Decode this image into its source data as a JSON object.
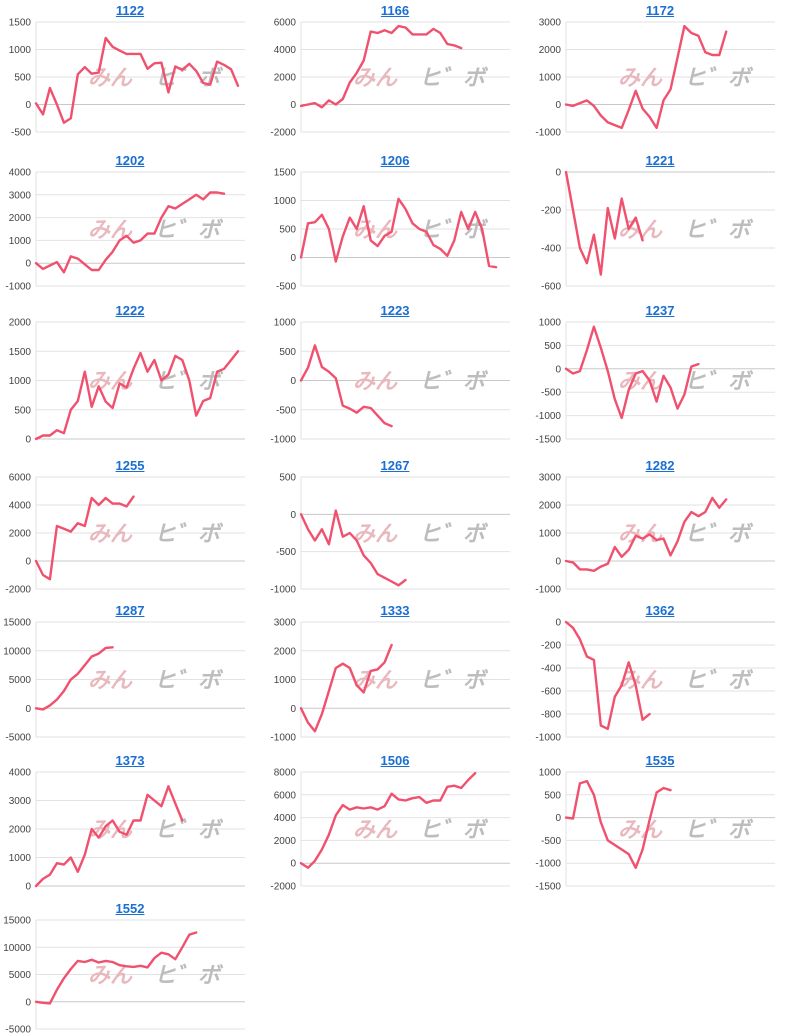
{
  "colors": {
    "line": "#f0516e",
    "grid": "#e2e2e2",
    "axis": "#c8c8c8",
    "title": "#1a6fd1",
    "tick": "#444444"
  },
  "watermark": {
    "part1": "みん",
    "part2": "ヒ゛ボ"
  },
  "chart_data": [
    {
      "type": "line",
      "title": "1122",
      "ylim": [
        -500,
        1500
      ],
      "yticks": [
        -500,
        0,
        500,
        1000,
        1500
      ],
      "x": [
        0,
        1,
        2,
        3,
        4,
        5,
        6,
        7,
        8,
        9,
        10,
        11,
        12,
        13,
        14,
        15,
        16,
        17,
        18,
        19,
        20,
        21,
        22,
        23,
        24,
        25,
        26,
        27,
        28,
        29,
        30
      ],
      "values": [
        20,
        -180,
        300,
        0,
        -330,
        -250,
        550,
        680,
        560,
        580,
        1210,
        1050,
        980,
        920,
        920,
        920,
        650,
        750,
        760,
        220,
        690,
        630,
        740,
        610,
        390,
        360,
        780,
        720,
        640,
        340,
        null
      ]
    },
    {
      "type": "line",
      "title": "1166",
      "ylim": [
        -2000,
        6000
      ],
      "yticks": [
        -2000,
        0,
        2000,
        4000,
        6000
      ],
      "values": [
        -100,
        0,
        100,
        -200,
        300,
        0,
        400,
        1600,
        2300,
        3200,
        5300,
        5200,
        5400,
        5200,
        5700,
        5600,
        5100,
        5100,
        5100,
        5500,
        5200,
        4400,
        4300,
        4100,
        null,
        null,
        null,
        null,
        null,
        null,
        null
      ]
    },
    {
      "type": "line",
      "title": "1172",
      "ylim": [
        -1000,
        3000
      ],
      "yticks": [
        -1000,
        0,
        1000,
        2000,
        3000
      ],
      "values": [
        0,
        -50,
        50,
        150,
        -50,
        -400,
        -650,
        -750,
        -850,
        -200,
        500,
        -150,
        -450,
        -850,
        150,
        550,
        1700,
        2850,
        2600,
        2500,
        1900,
        1800,
        1800,
        2650,
        null,
        null,
        null,
        null,
        null,
        null,
        null
      ]
    },
    {
      "type": "line",
      "title": "1202",
      "ylim": [
        -1000,
        4000
      ],
      "yticks": [
        -1000,
        0,
        1000,
        2000,
        3000,
        4000
      ],
      "values": [
        0,
        -250,
        -100,
        50,
        -400,
        300,
        200,
        -50,
        -300,
        -300,
        150,
        500,
        1000,
        1200,
        900,
        1000,
        1300,
        1300,
        2000,
        2500,
        2400,
        2600,
        2800,
        3000,
        2800,
        3100,
        3100,
        3050,
        null,
        null,
        null
      ]
    },
    {
      "type": "line",
      "title": "1206",
      "ylim": [
        -500,
        1500
      ],
      "yticks": [
        -500,
        0,
        500,
        1000,
        1500
      ],
      "values": [
        0,
        600,
        620,
        750,
        500,
        -70,
        370,
        700,
        500,
        900,
        300,
        200,
        380,
        450,
        1030,
        850,
        600,
        500,
        450,
        220,
        150,
        30,
        300,
        800,
        500,
        800,
        500,
        -150,
        -170,
        null,
        null
      ]
    },
    {
      "type": "line",
      "title": "1221",
      "ylim": [
        -600,
        0
      ],
      "yticks": [
        -600,
        -400,
        -200,
        0
      ],
      "values": [
        0,
        -200,
        -400,
        -480,
        -330,
        -540,
        -190,
        -350,
        -140,
        -300,
        -240,
        -360,
        null,
        null,
        null,
        null,
        null,
        null,
        null,
        null,
        null,
        null,
        null,
        null,
        null,
        null,
        null,
        null,
        null,
        null,
        null
      ]
    },
    {
      "type": "line",
      "title": "1222",
      "ylim": [
        0,
        2000
      ],
      "yticks": [
        0,
        500,
        1000,
        1500,
        2000
      ],
      "values": [
        0,
        60,
        60,
        150,
        100,
        500,
        650,
        1150,
        550,
        900,
        640,
        530,
        950,
        880,
        1200,
        1470,
        1150,
        1350,
        1000,
        1100,
        1420,
        1350,
        1000,
        400,
        650,
        700,
        1150,
        1200,
        1350,
        1500,
        null
      ]
    },
    {
      "type": "line",
      "title": "1223",
      "ylim": [
        -1000,
        1000
      ],
      "yticks": [
        -1000,
        -500,
        0,
        500,
        1000
      ],
      "values": [
        0,
        220,
        600,
        230,
        150,
        40,
        -430,
        -480,
        -550,
        -450,
        -470,
        -600,
        -730,
        -780,
        null,
        null,
        null,
        null,
        null,
        null,
        null,
        null,
        null,
        null,
        null,
        null,
        null,
        null,
        null,
        null,
        null
      ]
    },
    {
      "type": "line",
      "title": "1237",
      "ylim": [
        -1500,
        1000
      ],
      "yticks": [
        -1500,
        -1000,
        -500,
        0,
        500,
        1000
      ],
      "values": [
        0,
        -100,
        -50,
        400,
        900,
        450,
        -50,
        -650,
        -1050,
        -450,
        -100,
        -50,
        -250,
        -700,
        -150,
        -400,
        -850,
        -550,
        50,
        100,
        null,
        null,
        null,
        null,
        null,
        null,
        null,
        null,
        null,
        null,
        null
      ]
    },
    {
      "type": "line",
      "title": "1255",
      "ylim": [
        -2000,
        6000
      ],
      "yticks": [
        -2000,
        0,
        2000,
        4000,
        6000
      ],
      "values": [
        0,
        -1000,
        -1300,
        2500,
        2300,
        2100,
        2700,
        2500,
        4500,
        4000,
        4500,
        4100,
        4100,
        3900,
        4600,
        null,
        null,
        null,
        null,
        null,
        null,
        null,
        null,
        null,
        null,
        null,
        null,
        null,
        null,
        null,
        null
      ]
    },
    {
      "type": "line",
      "title": "1267",
      "ylim": [
        -1000,
        500
      ],
      "yticks": [
        -1000,
        -500,
        0,
        500
      ],
      "values": [
        0,
        -200,
        -350,
        -200,
        -400,
        50,
        -300,
        -250,
        -350,
        -550,
        -650,
        -800,
        -850,
        -900,
        -950,
        -880,
        null,
        null,
        null,
        null,
        null,
        null,
        null,
        null,
        null,
        null,
        null,
        null,
        null,
        null,
        null
      ]
    },
    {
      "type": "line",
      "title": "1282",
      "ylim": [
        -1000,
        3000
      ],
      "yticks": [
        -1000,
        0,
        1000,
        2000,
        3000
      ],
      "values": [
        0,
        -50,
        -300,
        -300,
        -350,
        -200,
        -100,
        500,
        150,
        400,
        900,
        800,
        950,
        750,
        800,
        200,
        700,
        1400,
        1750,
        1600,
        1750,
        2250,
        1900,
        2200,
        null,
        null,
        null,
        null,
        null,
        null,
        null
      ]
    },
    {
      "type": "line",
      "title": "1287",
      "ylim": [
        -5000,
        15000
      ],
      "yticks": [
        -5000,
        0,
        5000,
        10000,
        15000
      ],
      "values": [
        0,
        -200,
        500,
        1500,
        3000,
        5000,
        6000,
        7500,
        9000,
        9500,
        10500,
        10600,
        null,
        null,
        null,
        null,
        null,
        null,
        null,
        null,
        null,
        null,
        null,
        null,
        null,
        null,
        null,
        null,
        null,
        null,
        null
      ]
    },
    {
      "type": "line",
      "title": "1333",
      "ylim": [
        -1000,
        3000
      ],
      "yticks": [
        -1000,
        0,
        1000,
        2000,
        3000
      ],
      "values": [
        0,
        -500,
        -800,
        -200,
        600,
        1400,
        1550,
        1400,
        800,
        550,
        1300,
        1350,
        1600,
        2200,
        null,
        null,
        null,
        null,
        null,
        null,
        null,
        null,
        null,
        null,
        null,
        null,
        null,
        null,
        null,
        null,
        null
      ]
    },
    {
      "type": "line",
      "title": "1362",
      "ylim": [
        -1000,
        0
      ],
      "yticks": [
        -1000,
        -800,
        -600,
        -400,
        -200,
        0
      ],
      "values": [
        0,
        -50,
        -150,
        -300,
        -330,
        -900,
        -930,
        -650,
        -550,
        -350,
        -550,
        -850,
        -800,
        null,
        null,
        null,
        null,
        null,
        null,
        null,
        null,
        null,
        null,
        null,
        null,
        null,
        null,
        null,
        null,
        null,
        null
      ]
    },
    {
      "type": "line",
      "title": "1373",
      "ylim": [
        0,
        4000
      ],
      "yticks": [
        0,
        1000,
        2000,
        3000,
        4000
      ],
      "values": [
        0,
        250,
        400,
        800,
        750,
        1000,
        500,
        1100,
        2000,
        1700,
        2100,
        2300,
        1900,
        1800,
        2300,
        2300,
        3200,
        3000,
        2800,
        3500,
        2900,
        2300,
        null,
        null,
        null,
        null,
        null,
        null,
        null,
        null,
        null
      ]
    },
    {
      "type": "line",
      "title": "1506",
      "ylim": [
        -2000,
        8000
      ],
      "yticks": [
        -2000,
        0,
        2000,
        4000,
        6000,
        8000
      ],
      "values": [
        0,
        -400,
        200,
        1200,
        2500,
        4200,
        5100,
        4700,
        4900,
        4800,
        4900,
        4700,
        5000,
        6100,
        5600,
        5500,
        5700,
        5800,
        5300,
        5500,
        5500,
        6700,
        6800,
        6600,
        7300,
        7900,
        null,
        null,
        null,
        null,
        null
      ]
    },
    {
      "type": "line",
      "title": "1535",
      "ylim": [
        -1500,
        1000
      ],
      "yticks": [
        -1500,
        -1000,
        -500,
        0,
        500,
        1000
      ],
      "values": [
        0,
        -20,
        750,
        800,
        500,
        -100,
        -500,
        -600,
        -700,
        -800,
        -1100,
        -700,
        -50,
        550,
        650,
        600,
        null,
        null,
        null,
        null,
        null,
        null,
        null,
        null,
        null,
        null,
        null,
        null,
        null,
        null,
        null
      ]
    },
    {
      "type": "line",
      "title": "1552",
      "ylim": [
        -5000,
        15000
      ],
      "yticks": [
        -5000,
        0,
        5000,
        10000,
        15000
      ],
      "values": [
        0,
        -200,
        -300,
        2200,
        4300,
        6000,
        7500,
        7300,
        7700,
        7200,
        7500,
        7300,
        6700,
        6500,
        6400,
        6600,
        6300,
        8000,
        9000,
        8700,
        7800,
        10000,
        12300,
        12700,
        null,
        null,
        null,
        null,
        null,
        null,
        null
      ]
    }
  ]
}
